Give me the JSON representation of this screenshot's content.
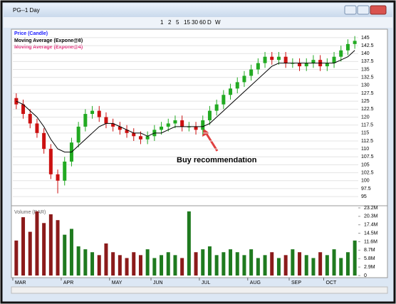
{
  "window": {
    "title": "PG--1 Day",
    "toolbar_items": [
      "1",
      "2",
      "5",
      "15",
      "30",
      "60",
      "D",
      "W"
    ]
  },
  "chart_data": {
    "type": "candlestick",
    "legend": [
      {
        "name": "Price (Candle)",
        "color": "#1a1aff"
      },
      {
        "name": "Moving Average (Expone@8)",
        "color": "#000000"
      },
      {
        "name": "Moving Average (Expone@4)",
        "color": "#e0307a"
      }
    ],
    "annotation": "Buy recommendation",
    "up_color": "#22aa22",
    "down_color": "#cc1111",
    "open": [
      126,
      124,
      121,
      118,
      115,
      110,
      102,
      100,
      106,
      112,
      117,
      121,
      122,
      120,
      118,
      117,
      116,
      115,
      114,
      113,
      114,
      116,
      117,
      118,
      119,
      117,
      117,
      116,
      119,
      122,
      124,
      127,
      129,
      131,
      133,
      135,
      137,
      139,
      138,
      139,
      137,
      137,
      136,
      137,
      138,
      136,
      137,
      139,
      141,
      143
    ],
    "high": [
      127.5,
      125.5,
      122.5,
      119.5,
      116.5,
      111.5,
      103.5,
      107.5,
      113.5,
      118.5,
      122.5,
      123.5,
      123.5,
      121.5,
      119.5,
      118.5,
      117.5,
      116.5,
      115.5,
      115.5,
      117.5,
      118.5,
      119.5,
      120.5,
      120.5,
      118.5,
      118.5,
      120.5,
      123.5,
      125.5,
      128.5,
      130.5,
      132.5,
      134.5,
      136.5,
      138.5,
      140.5,
      140.5,
      140.5,
      140.5,
      138.5,
      138.5,
      138.5,
      139.5,
      139.5,
      138.5,
      140.5,
      142.5,
      144.5,
      145.5
    ],
    "low": [
      122.5,
      119.5,
      116.5,
      113.5,
      108.5,
      100.5,
      96,
      98.5,
      104.5,
      110.5,
      115.5,
      119.5,
      118.5,
      116.5,
      115.5,
      114.5,
      113.5,
      112.5,
      111.5,
      111.5,
      112.5,
      114.5,
      115.5,
      116.5,
      115.5,
      115.5,
      114.5,
      114.5,
      117.5,
      120.5,
      122.5,
      125.5,
      127.5,
      129.5,
      131.5,
      133.5,
      135.5,
      136.5,
      136.5,
      135.5,
      135.5,
      134.5,
      134.5,
      135.5,
      134.5,
      134.5,
      135.5,
      137.5,
      139.5,
      141.5
    ],
    "close": [
      124,
      121,
      118,
      115,
      110,
      102,
      100,
      106,
      112,
      117,
      121,
      122,
      120,
      118,
      117,
      116,
      115,
      114,
      113,
      114,
      116,
      117,
      118,
      119,
      117,
      117,
      116,
      119,
      122,
      124,
      127,
      129,
      131,
      133,
      135,
      137,
      139,
      138,
      139,
      137,
      137,
      136,
      137,
      138,
      136,
      137,
      139,
      141,
      143,
      144
    ],
    "moving_average": [
      125,
      124,
      122,
      120,
      117,
      113,
      110,
      109,
      109,
      111,
      113,
      115,
      117,
      118,
      118,
      117,
      116,
      115,
      115,
      114,
      115,
      115,
      116,
      117,
      117,
      117,
      117,
      117,
      118,
      120,
      122,
      124,
      126,
      128,
      130,
      132,
      134,
      136,
      137,
      137,
      137,
      137,
      137,
      137,
      137,
      137,
      137,
      138,
      139,
      141
    ],
    "ylim": [
      93,
      147
    ],
    "yticks": [
      95,
      97.5,
      100,
      102.5,
      105,
      107.5,
      110,
      112.5,
      115,
      117.5,
      120,
      122.5,
      125,
      127.5,
      130,
      132.5,
      135,
      137.5,
      140,
      142.5,
      145
    ],
    "xticks": [
      {
        "value": 0,
        "label": "MAR"
      },
      {
        "value": 7,
        "label": "APR"
      },
      {
        "value": 14,
        "label": "MAY"
      },
      {
        "value": 20,
        "label": "JUN"
      },
      {
        "value": 27,
        "label": "JUL"
      },
      {
        "value": 34,
        "label": "AUG"
      },
      {
        "value": 40,
        "label": "SEP"
      },
      {
        "value": 45,
        "label": "OCT"
      }
    ],
    "volume": {
      "title": "Volume (BAR)",
      "values": [
        12,
        20,
        15,
        22,
        18,
        21,
        19,
        14,
        16,
        10,
        9,
        8,
        7,
        11,
        8,
        7,
        6,
        8,
        7,
        9,
        6,
        7,
        8,
        7,
        6,
        22,
        8,
        9,
        10,
        7,
        8,
        9,
        8,
        7,
        9,
        6,
        7,
        8,
        6,
        7,
        9,
        8,
        7,
        6,
        8,
        7,
        9,
        6,
        8,
        12
      ],
      "ylim": [
        0,
        23.2
      ],
      "yticks": [
        0,
        {
          "value": 2.9,
          "label": "2.9M"
        },
        {
          "value": 5.8,
          "label": "5.8M"
        },
        {
          "value": 8.7,
          "label": "8.7M"
        },
        {
          "value": 11.6,
          "label": "11.6M"
        },
        {
          "value": 14.5,
          "label": "14.5M"
        },
        {
          "value": 17.4,
          "label": "17.4M"
        },
        {
          "value": 20.3,
          "label": "20.3M"
        },
        {
          "value": 23.2,
          "label": "23.2M"
        }
      ]
    }
  }
}
